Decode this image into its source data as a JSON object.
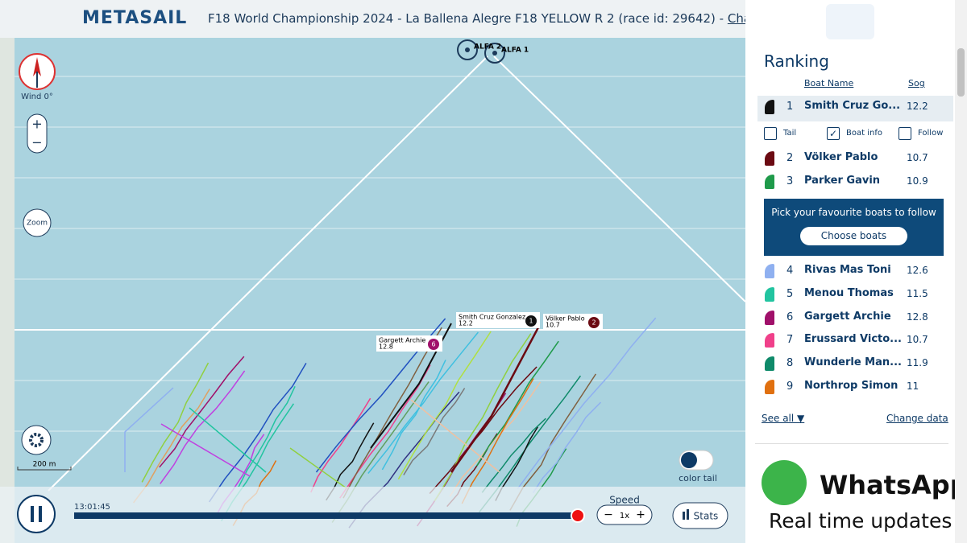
{
  "header": {
    "brand": "METASAIL",
    "race_title": "F18 World Championship 2024 - La Ballena Alegre F18 YELLOW R 2 (race id: 29642) -",
    "change_race": "Change race"
  },
  "map": {
    "wind": "Wind 0°",
    "zoom_in": "+",
    "zoom_out": "−",
    "zoom": "Zoom",
    "scale": "200 m",
    "marks": [
      "ALFA 2",
      "ALFA 1"
    ],
    "boat_labels": [
      {
        "name": "Smith  Cruz Gonzalez",
        "speed": "12.2",
        "rank": "1"
      },
      {
        "name": "Völker  Pablo",
        "speed": "10.7",
        "rank": "2"
      },
      {
        "name": "Gargett  Archie",
        "speed": "12.8",
        "rank": "6"
      }
    ]
  },
  "controls": {
    "time": "13:01:45",
    "speed_label": "Speed",
    "speed_minus": "−",
    "speed_value": "1x",
    "speed_plus": "+",
    "stats": "Stats",
    "color_tail": "color tail"
  },
  "sidebar": {
    "title": "Ranking",
    "columns": [
      "Boat Name",
      "Sog"
    ],
    "rows": [
      {
        "rank": 1,
        "name": "Smith Cruz Go...",
        "sog": 12.2,
        "color": "#111111"
      },
      {
        "rank": 2,
        "name": "Völker Pablo",
        "sog": 10.7,
        "color": "#6b0a12"
      },
      {
        "rank": 3,
        "name": "Parker Gavin",
        "sog": 10.9,
        "color": "#1f9a4a"
      },
      {
        "rank": 4,
        "name": "Rivas Mas Toni",
        "sog": 12.6,
        "color": "#8fb0f0"
      },
      {
        "rank": 5,
        "name": "Menou Thomas",
        "sog": 11.5,
        "color": "#22c4a0"
      },
      {
        "rank": 6,
        "name": "Gargett Archie",
        "sog": 12.8,
        "color": "#a0106a"
      },
      {
        "rank": 7,
        "name": "Erussard Victo...",
        "sog": 10.7,
        "color": "#f0408a"
      },
      {
        "rank": 8,
        "name": "Wunderle Man...",
        "sog": 11.9,
        "color": "#0f8a6a"
      },
      {
        "rank": 9,
        "name": "Northrop Simon",
        "sog": 11,
        "color": "#e07010"
      }
    ],
    "options": [
      "Tail",
      "Boat info",
      "Follow"
    ],
    "follow_text": "Pick your favourite boats to follow",
    "follow_button": "Choose boats",
    "see_all": "See all ▼",
    "change_data": "Change data",
    "ad_brand": "WhatsApp",
    "ad_text": "Real time updates"
  }
}
